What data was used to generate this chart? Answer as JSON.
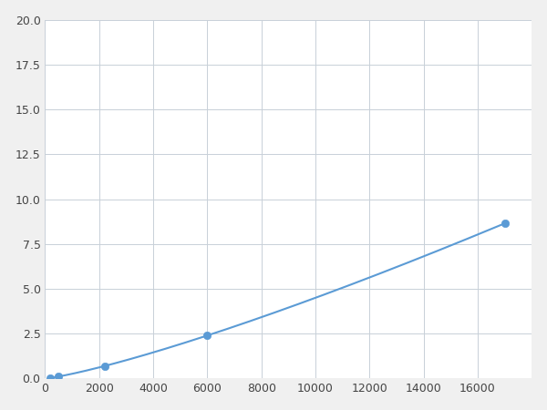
{
  "x_points": [
    200,
    500,
    900,
    2200,
    6000,
    6500,
    17000
  ],
  "y_points": [
    0.05,
    0.1,
    0.18,
    0.6,
    2.5,
    2.7,
    10.0
  ],
  "marker_x": [
    200,
    500,
    2200,
    6000,
    17000
  ],
  "line_color": "#5B9BD5",
  "marker_color": "#5B9BD5",
  "marker_size": 6,
  "xlim": [
    0,
    18000
  ],
  "ylim": [
    0,
    20.0
  ],
  "xticks": [
    0,
    2000,
    4000,
    6000,
    8000,
    10000,
    12000,
    14000,
    16000
  ],
  "yticks": [
    0.0,
    2.5,
    5.0,
    7.5,
    10.0,
    12.5,
    15.0,
    17.5,
    20.0
  ],
  "grid_color": "#c8d0d8",
  "background_color": "#ffffff",
  "figure_background": "#f0f0f0"
}
